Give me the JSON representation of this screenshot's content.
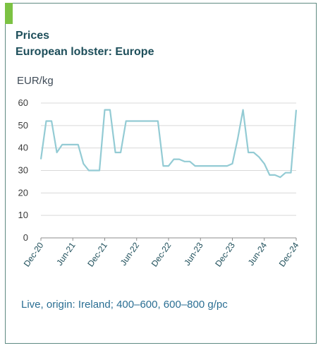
{
  "chart_data": {
    "type": "line",
    "title": "Prices",
    "subtitle": "European lobster: Europe",
    "ylabel": "EUR/kg",
    "note": "Live, origin: Ireland; 400–600, 600–800 g/pc",
    "ylim": [
      0,
      60
    ],
    "yticks": [
      0,
      10,
      20,
      30,
      40,
      50,
      60
    ],
    "xlim": [
      "2020-12",
      "2024-12"
    ],
    "xticks": [
      "Dec-20",
      "Jun-21",
      "Dec-21",
      "Jun-22",
      "Dec-22",
      "Jun-23",
      "Dec-23",
      "Jun-24",
      "Dec-24"
    ],
    "grid": true,
    "colors": {
      "line": "#93cbd4",
      "grid": "#d9d9d9",
      "axis": "#8c8c8c"
    },
    "series": [
      {
        "x": [
          "2020-12",
          "2021-01",
          "2021-02",
          "2021-03",
          "2021-04",
          "2021-05",
          "2021-06",
          "2021-07",
          "2021-08",
          "2021-09",
          "2021-10",
          "2021-11",
          "2021-12",
          "2022-01",
          "2022-02",
          "2022-03",
          "2022-04",
          "2022-05",
          "2022-06",
          "2022-07",
          "2022-08",
          "2022-09",
          "2022-10",
          "2022-11",
          "2022-12",
          "2023-01",
          "2023-02",
          "2023-03",
          "2023-04",
          "2023-05",
          "2023-06",
          "2023-07",
          "2023-08",
          "2023-09",
          "2023-10",
          "2023-11",
          "2023-12",
          "2024-01",
          "2024-02",
          "2024-03",
          "2024-04",
          "2024-05",
          "2024-06",
          "2024-07",
          "2024-08",
          "2024-09",
          "2024-10",
          "2024-11",
          "2024-12"
        ],
        "values": [
          35,
          52,
          52,
          38,
          41.5,
          41.5,
          41.5,
          41.5,
          33,
          30,
          30,
          30,
          57,
          57,
          38,
          38,
          52,
          52,
          52,
          52,
          52,
          52,
          52,
          32,
          32,
          35,
          35,
          34,
          34,
          32,
          32,
          32,
          32,
          32,
          32,
          32,
          33,
          44,
          57,
          38,
          38,
          36,
          33,
          28,
          28,
          27,
          29,
          29,
          57
        ]
      }
    ]
  }
}
